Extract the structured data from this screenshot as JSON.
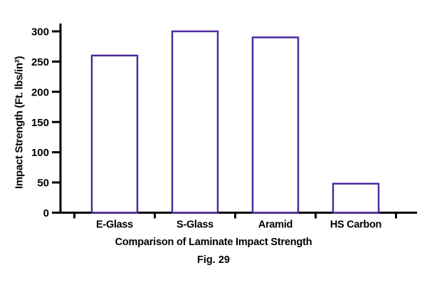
{
  "figure": {
    "title": "Comparison of Laminate Impact Strength",
    "caption": "Fig. 29"
  },
  "chart_data": {
    "type": "bar",
    "categories": [
      "E-Glass",
      "S-Glass",
      "Aramid",
      "HS Carbon"
    ],
    "values": [
      260,
      300,
      290,
      48
    ],
    "title": "Comparison of Laminate Impact Strength",
    "caption": "Fig. 29",
    "xlabel": "",
    "ylabel": "Impact Strength (Ft. lbs/in²)",
    "ylim": [
      0,
      300
    ],
    "yticks": [
      0,
      50,
      100,
      150,
      200,
      250,
      300
    ],
    "grid": false,
    "legend": "none",
    "bar_fill": "#ffffff",
    "bar_stroke": "#4f2b9e",
    "axis_color": "#000000",
    "text_color": "#000000"
  }
}
